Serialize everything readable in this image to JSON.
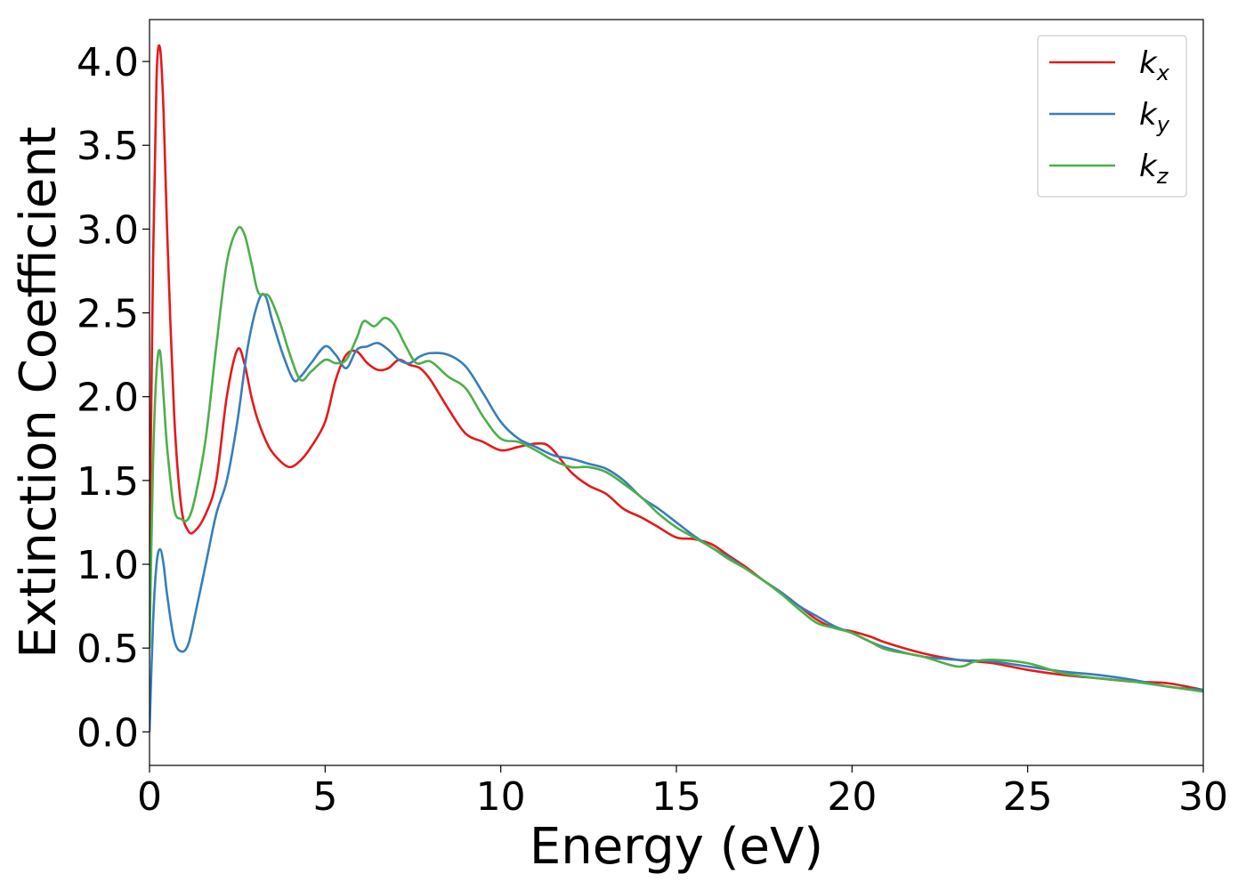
{
  "chart_data": {
    "type": "line",
    "title": "",
    "xlabel": "Energy (eV)",
    "ylabel": "Extinction Coefficient",
    "xlim": [
      0,
      30
    ],
    "ylim": [
      -0.2,
      4.25
    ],
    "xticks": [
      0,
      5,
      10,
      15,
      20,
      25,
      30
    ],
    "yticks": [
      0.0,
      0.5,
      1.0,
      1.5,
      2.0,
      2.5,
      3.0,
      3.5,
      4.0
    ],
    "xtick_labels": [
      "0",
      "5",
      "10",
      "15",
      "20",
      "25",
      "30"
    ],
    "ytick_labels": [
      "0.0",
      "0.5",
      "1.0",
      "1.5",
      "2.0",
      "2.5",
      "3.0",
      "3.5",
      "4.0"
    ],
    "grid": false,
    "legend_position": "top-right",
    "series": [
      {
        "name": "k",
        "subscript": "x",
        "color": "#e41a1c",
        "x": [
          0,
          0.1,
          0.2,
          0.3,
          0.4,
          0.5,
          0.7,
          0.9,
          1.1,
          1.3,
          1.6,
          1.9,
          2.2,
          2.5,
          2.7,
          2.9,
          3.1,
          3.4,
          3.7,
          4.0,
          4.3,
          4.6,
          5.0,
          5.3,
          5.6,
          5.9,
          6.2,
          6.5,
          6.8,
          7.1,
          7.4,
          7.7,
          8.0,
          8.5,
          9.0,
          9.5,
          10.0,
          10.5,
          11.0,
          11.4,
          12.0,
          12.5,
          13.0,
          13.5,
          14.0,
          14.5,
          15.0,
          15.5,
          16.0,
          16.5,
          17.0,
          17.5,
          18.0,
          18.5,
          19.0,
          19.5,
          20.0,
          20.5,
          21.0,
          22.0,
          23.0,
          24.0,
          25.0,
          26.0,
          27.0,
          28.0,
          29.0,
          30.0
        ],
        "y": [
          1.0,
          2.8,
          3.9,
          4.08,
          3.7,
          3.0,
          1.9,
          1.35,
          1.2,
          1.2,
          1.3,
          1.5,
          2.0,
          2.28,
          2.2,
          2.0,
          1.85,
          1.7,
          1.62,
          1.58,
          1.62,
          1.7,
          1.85,
          2.1,
          2.25,
          2.27,
          2.2,
          2.16,
          2.17,
          2.22,
          2.19,
          2.17,
          2.1,
          1.93,
          1.78,
          1.73,
          1.68,
          1.7,
          1.72,
          1.7,
          1.55,
          1.47,
          1.42,
          1.33,
          1.28,
          1.22,
          1.16,
          1.15,
          1.12,
          1.05,
          0.98,
          0.9,
          0.83,
          0.75,
          0.67,
          0.62,
          0.6,
          0.57,
          0.53,
          0.47,
          0.43,
          0.41,
          0.37,
          0.34,
          0.32,
          0.3,
          0.29,
          0.25
        ]
      },
      {
        "name": "k",
        "subscript": "y",
        "color": "#377eb8",
        "x": [
          0,
          0.1,
          0.2,
          0.3,
          0.4,
          0.5,
          0.7,
          0.9,
          1.1,
          1.3,
          1.6,
          1.9,
          2.2,
          2.5,
          2.8,
          3.1,
          3.3,
          3.5,
          3.8,
          4.1,
          4.3,
          4.6,
          5.0,
          5.3,
          5.6,
          5.9,
          6.2,
          6.5,
          6.8,
          7.1,
          7.4,
          7.7,
          8.0,
          8.5,
          9.0,
          9.5,
          10.0,
          10.5,
          11.0,
          11.5,
          12.0,
          12.5,
          13.0,
          13.5,
          14.0,
          14.5,
          15.0,
          15.5,
          16.0,
          16.5,
          17.0,
          17.5,
          18.0,
          18.5,
          19.0,
          19.5,
          20.0,
          20.5,
          21.0,
          22.0,
          23.0,
          24.0,
          25.0,
          26.0,
          27.0,
          28.0,
          29.0,
          30.0
        ],
        "y": [
          0.0,
          0.65,
          1.0,
          1.09,
          1.0,
          0.82,
          0.55,
          0.48,
          0.52,
          0.7,
          1.0,
          1.3,
          1.5,
          1.85,
          2.3,
          2.57,
          2.6,
          2.45,
          2.25,
          2.1,
          2.12,
          2.2,
          2.3,
          2.25,
          2.17,
          2.28,
          2.3,
          2.32,
          2.28,
          2.22,
          2.2,
          2.24,
          2.26,
          2.25,
          2.18,
          2.02,
          1.85,
          1.75,
          1.7,
          1.65,
          1.63,
          1.6,
          1.57,
          1.5,
          1.4,
          1.33,
          1.25,
          1.17,
          1.1,
          1.04,
          0.97,
          0.9,
          0.83,
          0.75,
          0.69,
          0.63,
          0.59,
          0.54,
          0.5,
          0.45,
          0.43,
          0.42,
          0.39,
          0.36,
          0.34,
          0.31,
          0.27,
          0.25
        ]
      },
      {
        "name": "k",
        "subscript": "z",
        "color": "#4daf4a",
        "x": [
          0,
          0.1,
          0.2,
          0.3,
          0.4,
          0.5,
          0.7,
          0.9,
          1.1,
          1.3,
          1.6,
          1.9,
          2.2,
          2.5,
          2.7,
          2.9,
          3.1,
          3.4,
          3.7,
          4.0,
          4.3,
          4.6,
          5.0,
          5.3,
          5.6,
          5.9,
          6.1,
          6.4,
          6.7,
          7.0,
          7.3,
          7.6,
          8.0,
          8.5,
          9.0,
          9.5,
          10.0,
          10.5,
          11.0,
          11.5,
          12.0,
          12.5,
          13.0,
          13.5,
          14.0,
          14.5,
          15.0,
          15.5,
          16.0,
          16.5,
          17.0,
          17.5,
          18.0,
          18.5,
          19.0,
          19.5,
          20.0,
          20.5,
          21.0,
          22.0,
          23.0,
          23.5,
          24.0,
          25.0,
          26.0,
          27.0,
          28.0,
          29.0,
          30.0
        ],
        "y": [
          0.5,
          1.6,
          2.15,
          2.27,
          2.0,
          1.7,
          1.33,
          1.27,
          1.27,
          1.4,
          1.75,
          2.3,
          2.8,
          3.0,
          2.97,
          2.8,
          2.62,
          2.6,
          2.45,
          2.25,
          2.1,
          2.15,
          2.22,
          2.2,
          2.22,
          2.35,
          2.45,
          2.42,
          2.47,
          2.42,
          2.3,
          2.2,
          2.21,
          2.12,
          2.05,
          1.88,
          1.75,
          1.73,
          1.68,
          1.62,
          1.58,
          1.58,
          1.55,
          1.48,
          1.4,
          1.3,
          1.22,
          1.16,
          1.1,
          1.03,
          0.97,
          0.9,
          0.82,
          0.73,
          0.65,
          0.62,
          0.59,
          0.54,
          0.49,
          0.45,
          0.39,
          0.42,
          0.43,
          0.41,
          0.35,
          0.32,
          0.3,
          0.27,
          0.24
        ]
      }
    ]
  }
}
